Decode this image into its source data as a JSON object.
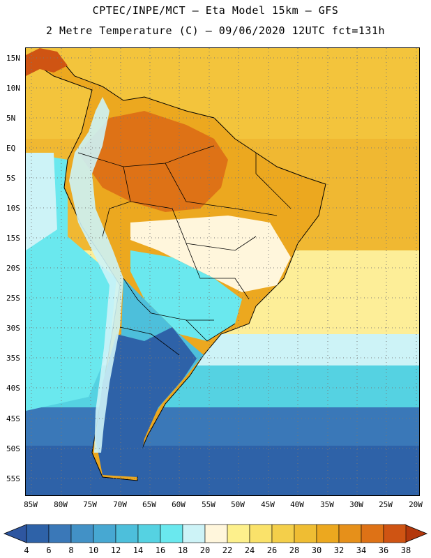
{
  "header": {
    "line1": "CPTEC/INPE/MCT –  Eta Model 15km – GFS",
    "line2": "2 Metre Temperature (C) – 09/06/2020 12UTC fct=131h"
  },
  "axes": {
    "lat_labels": [
      "15N",
      "10N",
      "5N",
      "EQ",
      "5S",
      "10S",
      "15S",
      "20S",
      "25S",
      "30S",
      "35S",
      "40S",
      "45S",
      "50S",
      "55S"
    ],
    "lon_labels": [
      "85W",
      "80W",
      "75W",
      "70W",
      "65W",
      "60W",
      "55W",
      "50W",
      "45W",
      "40W",
      "35W",
      "30W",
      "25W",
      "20W"
    ]
  },
  "colorbar": {
    "labels": [
      "4",
      "6",
      "8",
      "10",
      "12",
      "14",
      "16",
      "18",
      "20",
      "22",
      "24",
      "26",
      "28",
      "30",
      "32",
      "34",
      "36",
      "38"
    ],
    "colors": [
      "#2e62a8",
      "#3a78b8",
      "#4291c6",
      "#47a8d2",
      "#4dbfdb",
      "#55d2e2",
      "#6ae8ee",
      "#cdf3f7",
      "#fff6dc",
      "#fdf08c",
      "#fae26a",
      "#f4cf4a",
      "#efbd33",
      "#eca81f",
      "#e6901a",
      "#de7216",
      "#cf5413",
      "#b73b0c"
    ],
    "below_color": "#2e56a0",
    "above_color": "#b3380c"
  },
  "map": {
    "ocean_colors": {
      "tropical": "#f3c43c",
      "equatorial": "#f0b832",
      "south_atlantic_warm": "#fdee98",
      "south_atlantic_mild": "#cdf3f7",
      "cool": "#55d2e2",
      "cold": "#3a78b8",
      "polar": "#2e62a8"
    },
    "land_colors": {
      "amazon": "#de7216",
      "north": "#eca81f",
      "central": "#fff6dc",
      "southeast": "#6ae8ee",
      "south": "#4dbfdb",
      "patagonia": "#2e62a8",
      "andes": "#cdf3f7"
    }
  }
}
